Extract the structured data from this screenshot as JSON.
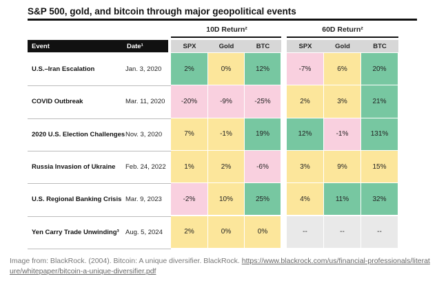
{
  "title": "S&P 500, gold, and bitcoin through major geopolitical events",
  "table": {
    "group_headers": [
      "10D Return²",
      "60D Return²"
    ],
    "columns": [
      "Event",
      "Date¹",
      "SPX",
      "Gold",
      "BTC",
      "SPX",
      "Gold",
      "BTC"
    ],
    "rows": [
      {
        "event": "U.S.–Iran Escalation",
        "date": "Jan. 3, 2020",
        "values": [
          "2%",
          "0%",
          "12%",
          "-7%",
          "6%",
          "20%"
        ],
        "colors": [
          "#77c7a1",
          "#fce69b",
          "#77c7a1",
          "#f9d0df",
          "#fce69b",
          "#77c7a1"
        ]
      },
      {
        "event": "COVID Outbreak",
        "date": "Mar. 11, 2020",
        "values": [
          "-20%",
          "-9%",
          "-25%",
          "2%",
          "3%",
          "21%"
        ],
        "colors": [
          "#f9d0df",
          "#f9d0df",
          "#f9d0df",
          "#fce69b",
          "#fce69b",
          "#77c7a1"
        ]
      },
      {
        "event": "2020 U.S. Election Challenges",
        "date": "Nov. 3, 2020",
        "values": [
          "7%",
          "-1%",
          "19%",
          "12%",
          "-1%",
          "131%"
        ],
        "colors": [
          "#fce69b",
          "#fce69b",
          "#77c7a1",
          "#77c7a1",
          "#f9d0df",
          "#77c7a1"
        ]
      },
      {
        "event": "Russia Invasion of Ukraine",
        "date": "Feb. 24, 2022",
        "values": [
          "1%",
          "2%",
          "-6%",
          "3%",
          "9%",
          "15%"
        ],
        "colors": [
          "#fce69b",
          "#fce69b",
          "#f9d0df",
          "#fce69b",
          "#fce69b",
          "#fce69b"
        ]
      },
      {
        "event": "U.S. Regional Banking Crisis",
        "date": "Mar. 9, 2023",
        "values": [
          "-2%",
          "10%",
          "25%",
          "4%",
          "11%",
          "32%"
        ],
        "colors": [
          "#f9d0df",
          "#fce69b",
          "#77c7a1",
          "#fce69b",
          "#77c7a1",
          "#77c7a1"
        ]
      },
      {
        "event": "Yen Carry Trade Unwinding³",
        "date": "Aug. 5, 2024",
        "values": [
          "2%",
          "0%",
          "0%",
          "--",
          "--",
          "--"
        ],
        "colors": [
          "#fce69b",
          "#fce69b",
          "#fce69b",
          "#e9e9e9",
          "#e9e9e9",
          "#e9e9e9"
        ]
      }
    ]
  },
  "caption": {
    "text": "Image from: BlackRock. (2004). Bitcoin: A unique diversifier. BlackRock. ",
    "url": "https://www.blackrock.com/us/financial-professionals/literature/whitepaper/bitcoin-a-unique-diversifier.pdf"
  }
}
